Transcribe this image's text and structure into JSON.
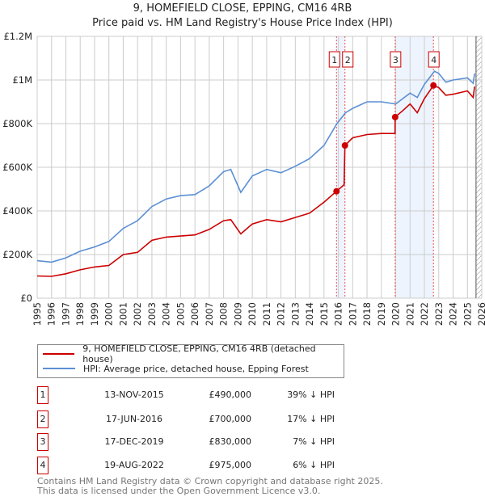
{
  "chart_data": {
    "type": "line",
    "title": "9, HOMEFIELD CLOSE, EPPING, CM16 4RB",
    "subtitle": "Price paid vs. HM Land Registry's House Price Index (HPI)",
    "xlim": [
      1995,
      2026
    ],
    "ylim": [
      0,
      1200000
    ],
    "x_ticks": [
      "1995",
      "1996",
      "1997",
      "1998",
      "1999",
      "2000",
      "2001",
      "2002",
      "2003",
      "2004",
      "2005",
      "2006",
      "2007",
      "2008",
      "2009",
      "2010",
      "2011",
      "2012",
      "2013",
      "2014",
      "2015",
      "2016",
      "2017",
      "2018",
      "2019",
      "2020",
      "2021",
      "2022",
      "2023",
      "2024",
      "2025",
      "2026"
    ],
    "y_ticks": [
      {
        "v": 0,
        "label": "£0"
      },
      {
        "v": 200000,
        "label": "£200K"
      },
      {
        "v": 400000,
        "label": "£400K"
      },
      {
        "v": 600000,
        "label": "£600K"
      },
      {
        "v": 800000,
        "label": "£800K"
      },
      {
        "v": 1000000,
        "label": "£1M"
      },
      {
        "v": 1200000,
        "label": "£1.2M"
      }
    ],
    "grid": true,
    "shaded_ranges": [
      [
        2015.87,
        2016.46
      ],
      [
        2019.96,
        2022.63
      ]
    ],
    "future_hatch_from": 2025.6,
    "series": [
      {
        "name": "9, HOMEFIELD CLOSE, EPPING, CM16 4RB (detached house)",
        "color": "#cc0000",
        "x": [
          1995,
          1996,
          1997,
          1998,
          1999,
          2000,
          2001,
          2002,
          2003,
          2004,
          2005,
          2006,
          2007,
          2008,
          2008.5,
          2009.2,
          2010,
          2011,
          2012,
          2013,
          2014,
          2015,
          2015.87,
          2016.4,
          2016.46,
          2017,
          2018,
          2019,
          2019.95,
          2019.96,
          2020.5,
          2021,
          2021.5,
          2022,
          2022.63,
          2023,
          2023.5,
          2024,
          2025,
          2025.4,
          2025.5
        ],
        "y": [
          102000,
          100000,
          112000,
          130000,
          143000,
          150000,
          200000,
          210000,
          265000,
          280000,
          285000,
          290000,
          315000,
          355000,
          360000,
          295000,
          340000,
          360000,
          350000,
          370000,
          390000,
          440000,
          490000,
          520000,
          700000,
          735000,
          750000,
          755000,
          755000,
          830000,
          860000,
          890000,
          850000,
          915000,
          975000,
          965000,
          930000,
          935000,
          950000,
          920000,
          970000
        ]
      },
      {
        "name": "HPI: Average price, detached house, Epping Forest",
        "color": "#5b8fd4",
        "x": [
          1995,
          1996,
          1997,
          1998,
          1999,
          2000,
          2001,
          2002,
          2003,
          2004,
          2005,
          2006,
          2007,
          2008,
          2008.5,
          2009.2,
          2010,
          2011,
          2012,
          2013,
          2014,
          2015,
          2015.9,
          2016.5,
          2017,
          2018,
          2019,
          2020,
          2021,
          2021.5,
          2022,
          2022.7,
          2023,
          2023.5,
          2024,
          2025,
          2025.4,
          2025.5
        ],
        "y": [
          172000,
          165000,
          185000,
          215000,
          235000,
          260000,
          320000,
          355000,
          420000,
          455000,
          470000,
          475000,
          515000,
          580000,
          590000,
          485000,
          560000,
          590000,
          575000,
          605000,
          640000,
          700000,
          800000,
          850000,
          870000,
          900000,
          900000,
          890000,
          940000,
          920000,
          980000,
          1040000,
          1030000,
          990000,
          1000000,
          1010000,
          985000,
          1030000
        ]
      }
    ],
    "sales": [
      {
        "n": "1",
        "x": 2015.87,
        "y": 490000
      },
      {
        "n": "2",
        "x": 2016.46,
        "y": 700000
      },
      {
        "n": "3",
        "x": 2019.96,
        "y": 830000
      },
      {
        "n": "4",
        "x": 2022.63,
        "y": 975000
      }
    ]
  },
  "legend": {
    "property": "9, HOMEFIELD CLOSE, EPPING, CM16 4RB (detached house)",
    "hpi": "HPI: Average price, detached house, Epping Forest"
  },
  "transactions": [
    {
      "n": "1",
      "date": "13-NOV-2015",
      "price": "£490,000",
      "diff": "39% ↓ HPI"
    },
    {
      "n": "2",
      "date": "17-JUN-2016",
      "price": "£700,000",
      "diff": "17% ↓ HPI"
    },
    {
      "n": "3",
      "date": "17-DEC-2019",
      "price": "£830,000",
      "diff": "7% ↓ HPI"
    },
    {
      "n": "4",
      "date": "19-AUG-2022",
      "price": "£975,000",
      "diff": "6% ↓ HPI"
    }
  ],
  "footer": {
    "line1": "Contains HM Land Registry data © Crown copyright and database right 2025.",
    "line2": "This data is licensed under the Open Government Licence v3.0."
  }
}
